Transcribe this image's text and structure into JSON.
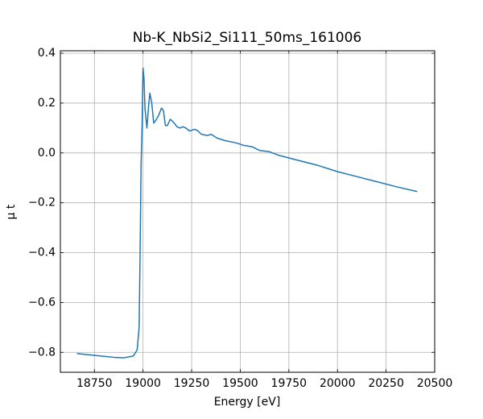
{
  "chart_data": {
    "type": "line",
    "title": "Nb-K_NbSi2_Si111_50ms_161006",
    "x_label": "Energy [eV]",
    "y_label": "μ t",
    "xlim": [
      18575,
      20500
    ],
    "ylim": [
      -0.88,
      0.41
    ],
    "xticks": [
      18750,
      19000,
      19250,
      19500,
      19750,
      20000,
      20250,
      20500
    ],
    "yticks": [
      {
        "value": -0.8,
        "label": "−0.8"
      },
      {
        "value": -0.6,
        "label": "−0.6"
      },
      {
        "value": -0.4,
        "label": "−0.4"
      },
      {
        "value": -0.2,
        "label": "−0.2"
      },
      {
        "value": 0,
        "label": "0.0"
      },
      0.2,
      0.4
    ],
    "grid": true,
    "x": [
      18660,
      18750,
      18850,
      18900,
      18950,
      18970,
      18980,
      18985,
      18990,
      18995,
      19000,
      19005,
      19010,
      19020,
      19030,
      19035,
      19045,
      19055,
      19065,
      19080,
      19095,
      19105,
      19115,
      19125,
      19140,
      19155,
      19175,
      19190,
      19205,
      19220,
      19240,
      19265,
      19280,
      19300,
      19330,
      19350,
      19380,
      19420,
      19480,
      19520,
      19560,
      19600,
      19650,
      19700,
      19800,
      19900,
      20000,
      20100,
      20200,
      20300,
      20410
    ],
    "series": [
      {
        "name": "μ t",
        "color": "#1f77b4",
        "values": [
          -0.805,
          -0.812,
          -0.82,
          -0.822,
          -0.815,
          -0.79,
          -0.7,
          -0.4,
          -0.05,
          0.1,
          0.34,
          0.3,
          0.18,
          0.1,
          0.2,
          0.24,
          0.2,
          0.12,
          0.13,
          0.15,
          0.18,
          0.17,
          0.11,
          0.11,
          0.135,
          0.125,
          0.105,
          0.1,
          0.105,
          0.1,
          0.088,
          0.095,
          0.09,
          0.075,
          0.07,
          0.075,
          0.06,
          0.05,
          0.04,
          0.03,
          0.025,
          0.01,
          0.005,
          -0.01,
          -0.03,
          -0.05,
          -0.075,
          -0.095,
          -0.115,
          -0.135,
          -0.155
        ]
      }
    ]
  }
}
